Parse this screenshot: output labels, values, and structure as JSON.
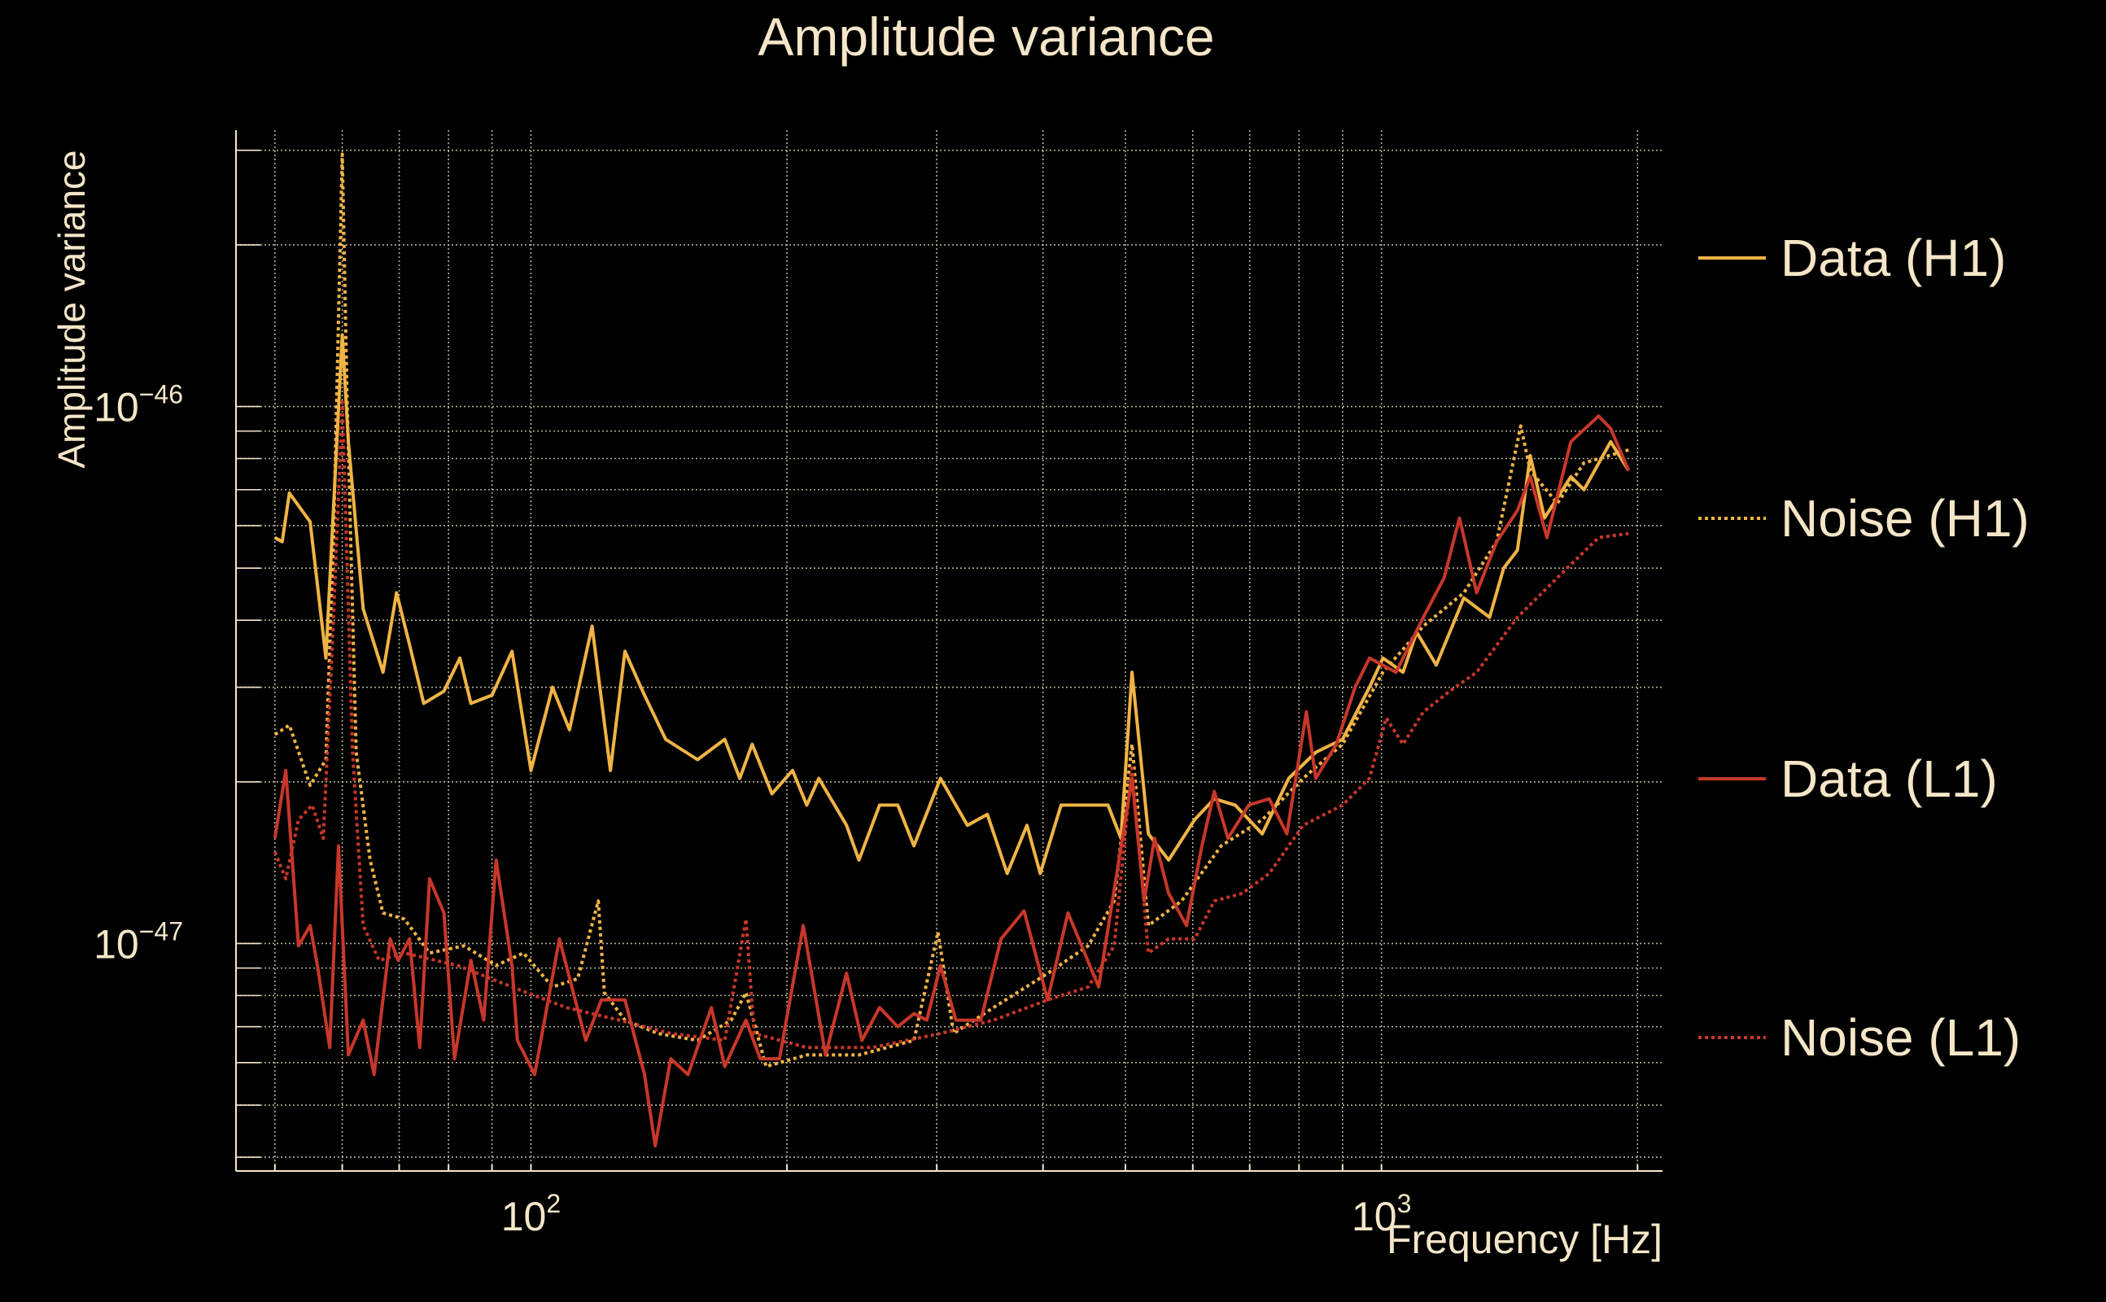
{
  "chart_data": {
    "type": "line",
    "title": "Amplitude variance",
    "xlabel": "Frequency [Hz]",
    "ylabel": "Amplitude variance",
    "xscale": "log",
    "yscale": "log",
    "xlim": [
      45,
      2140
    ],
    "ylim": [
      3.77e-48,
      3.27e-46
    ],
    "grid": true,
    "legend_position": "right",
    "x_ticks": [
      {
        "value": 100,
        "base": "10",
        "exp": "2"
      },
      {
        "value": 1000,
        "base": "10",
        "exp": "3"
      }
    ],
    "y_ticks": [
      {
        "value": 1e-46,
        "base": "10",
        "exp": "−46"
      },
      {
        "value": 1e-47,
        "base": "10",
        "exp": "−47"
      }
    ],
    "x_grid": [
      50,
      60,
      70,
      80,
      90,
      100,
      200,
      300,
      400,
      500,
      600,
      700,
      800,
      900,
      1000,
      2000
    ],
    "y_grid": [
      4e-48,
      5e-48,
      6e-48,
      7e-48,
      8e-48,
      9e-48,
      1e-47,
      2e-47,
      3e-47,
      4e-47,
      5e-47,
      6e-47,
      7e-47,
      8e-47,
      9e-47,
      1e-46,
      2e-46,
      3e-46
    ],
    "series": [
      {
        "name": "Data (H1)",
        "color": "#f0b445",
        "dash": "solid",
        "x": [
          50,
          51,
          52,
          55,
          57.4,
          60,
          61,
          63.5,
          67,
          69.5,
          72,
          74.8,
          79,
          82.5,
          85,
          90,
          95,
          100,
          106,
          111,
          118,
          124,
          129,
          136,
          144,
          157,
          169,
          176,
          182,
          192,
          203,
          211,
          218,
          235,
          243,
          257,
          270,
          282,
          303,
          326,
          344,
          363,
          383,
          397,
          420,
          452,
          477,
          494,
          509,
          532,
          562,
          603,
          636,
          673,
          724,
          778,
          837,
          900,
          968,
          1004,
          1060,
          1100,
          1160,
          1250,
          1340,
          1392,
          1445,
          1496,
          1555,
          1670,
          1730,
          1860,
          1952
        ],
        "y": [
          5.7e-47,
          5.6e-47,
          6.9e-47,
          6.1e-47,
          3.4e-47,
          1.36e-46,
          8.6e-47,
          4.2e-47,
          3.2e-47,
          4.5e-47,
          3.6e-47,
          2.8e-47,
          2.95e-47,
          3.4e-47,
          2.8e-47,
          2.9e-47,
          3.5e-47,
          2.1e-47,
          3e-47,
          2.5e-47,
          3.9e-47,
          2.1e-47,
          3.5e-47,
          2.9e-47,
          2.4e-47,
          2.2e-47,
          2.4e-47,
          2.03e-47,
          2.35e-47,
          1.9e-47,
          2.1e-47,
          1.81e-47,
          2.03e-47,
          1.66e-47,
          1.43e-47,
          1.81e-47,
          1.81e-47,
          1.52e-47,
          2.03e-47,
          1.66e-47,
          1.74e-47,
          1.35e-47,
          1.66e-47,
          1.35e-47,
          1.81e-47,
          1.81e-47,
          1.81e-47,
          1.57e-47,
          3.2e-47,
          1.6e-47,
          1.43e-47,
          1.7e-47,
          1.86e-47,
          1.81e-47,
          1.6e-47,
          2.03e-47,
          2.27e-47,
          2.4e-47,
          3e-47,
          3.4e-47,
          3.2e-47,
          3.8e-47,
          3.3e-47,
          4.4e-47,
          4.05e-47,
          5e-47,
          5.4e-47,
          8.1e-47,
          6.2e-47,
          7.4e-47,
          7e-47,
          8.6e-47,
          7.6e-47
        ]
      },
      {
        "name": "Noise (H1)",
        "color": "#f0b445",
        "dash": "dotted",
        "x": [
          50,
          52,
          55,
          57.4,
          58.6,
          60,
          60.8,
          62.3,
          64.7,
          67,
          71,
          76,
          83.4,
          91,
          98,
          106,
          113.5,
          120,
          122,
          129,
          141,
          157,
          172,
          179,
          189,
          211,
          243,
          282,
          301,
          314,
          350,
          405,
          452,
          485,
          509,
          532,
          582,
          648,
          724,
          809,
          900,
          1004,
          1120,
          1250,
          1366,
          1458,
          1496,
          1610,
          1730,
          1952
        ],
        "y": [
          2.45e-47,
          2.55e-47,
          1.97e-47,
          2.2e-47,
          5.7e-47,
          2.95e-46,
          1.02e-46,
          2.27e-47,
          1.43e-47,
          1.14e-47,
          1.11e-47,
          9.6e-48,
          9.9e-48,
          9.1e-48,
          9.6e-48,
          8.3e-48,
          8.6e-48,
          1.2e-47,
          8.1e-48,
          7.2e-48,
          6.8e-48,
          6.6e-48,
          7.2e-48,
          8.1e-48,
          5.9e-48,
          6.2e-48,
          6.2e-48,
          6.6e-48,
          1.05e-47,
          6.8e-48,
          7.6e-48,
          8.8e-48,
          9.9e-48,
          1.2e-47,
          2.35e-47,
          1.08e-47,
          1.2e-47,
          1.52e-47,
          1.7e-47,
          2.03e-47,
          2.35e-47,
          3.2e-47,
          3.9e-47,
          4.5e-47,
          5.6e-47,
          9.2e-47,
          7.6e-47,
          6.6e-47,
          7.85e-47,
          8.3e-47
        ]
      },
      {
        "name": "Data (L1)",
        "color": "#c7372a",
        "dash": "solid",
        "x": [
          50,
          51.5,
          53.3,
          55,
          56.1,
          58,
          59.4,
          61,
          63.5,
          65.4,
          68.3,
          69.8,
          72,
          74,
          76,
          79,
          81.3,
          85,
          88,
          91,
          95,
          96.4,
          101,
          108,
          116,
          121,
          129,
          136,
          140,
          146,
          153,
          163,
          169,
          179,
          186,
          196,
          209,
          222,
          235,
          245,
          257,
          270,
          282,
          292,
          303,
          316,
          338,
          357,
          380,
          405,
          428,
          465,
          509,
          526,
          541,
          562,
          590,
          615,
          636,
          660,
          698,
          738,
          774,
          816,
          837,
          885,
          931,
          968,
          1040,
          1120,
          1185,
          1235,
          1294,
          1366,
          1445,
          1496,
          1565,
          1670,
          1800,
          1860,
          1952
        ],
        "y": [
          1.57e-47,
          2.1e-47,
          9.9e-48,
          1.08e-47,
          9.1e-48,
          6.4e-48,
          1.52e-47,
          6.2e-48,
          7.2e-48,
          5.7e-48,
          1.02e-47,
          9.3e-48,
          1.02e-47,
          6.4e-48,
          1.32e-47,
          1.14e-47,
          6.1e-48,
          9.3e-48,
          7.2e-48,
          1.43e-47,
          9.1e-48,
          6.6e-48,
          5.7e-48,
          1.02e-47,
          6.6e-48,
          7.85e-48,
          7.85e-48,
          5.7e-48,
          4.2e-48,
          6.1e-48,
          5.7e-48,
          7.6e-48,
          5.9e-48,
          7.2e-48,
          6.1e-48,
          6.1e-48,
          1.08e-47,
          6.2e-48,
          8.8e-48,
          6.6e-48,
          7.6e-48,
          7e-48,
          7.4e-48,
          7.2e-48,
          9.1e-48,
          7.2e-48,
          7.2e-48,
          1.02e-47,
          1.15e-47,
          7.85e-48,
          1.14e-47,
          8.3e-48,
          2.03e-47,
          1.2e-47,
          1.57e-47,
          1.24e-47,
          1.08e-47,
          1.52e-47,
          1.92e-47,
          1.57e-47,
          1.81e-47,
          1.86e-47,
          1.6e-47,
          2.7e-47,
          2.03e-47,
          2.35e-47,
          3e-47,
          3.4e-47,
          3.2e-47,
          4.05e-47,
          4.8e-47,
          6.2e-47,
          4.5e-47,
          5.6e-47,
          6.4e-47,
          7.4e-47,
          5.7e-47,
          8.6e-47,
          9.6e-47,
          9.1e-47,
          7.6e-47
        ]
      },
      {
        "name": "Noise (L1)",
        "color": "#c7372a",
        "dash": "dotted",
        "x": [
          50,
          51.5,
          53.3,
          55.3,
          57,
          58.6,
          60,
          61.7,
          63.5,
          66.3,
          71,
          82,
          95,
          110,
          127,
          146,
          169,
          179,
          183,
          211,
          252,
          303,
          350,
          405,
          452,
          485,
          509,
          532,
          562,
          603,
          636,
          686,
          738,
          809,
          900,
          968,
          1013,
          1060,
          1120,
          1203,
          1294,
          1445,
          1610,
          1800,
          1952
        ],
        "y": [
          1.48e-47,
          1.32e-47,
          1.7e-47,
          1.81e-47,
          1.57e-47,
          4.05e-47,
          1.02e-46,
          2.27e-47,
          1.08e-47,
          9.3e-48,
          9.6e-48,
          9.1e-48,
          8.3e-48,
          7.6e-48,
          7.2e-48,
          6.8e-48,
          6.6e-48,
          1.11e-47,
          6.8e-48,
          6.4e-48,
          6.4e-48,
          6.8e-48,
          7.2e-48,
          7.85e-48,
          8.3e-48,
          9.9e-48,
          2.15e-47,
          9.6e-48,
          1.02e-47,
          1.02e-47,
          1.2e-47,
          1.24e-47,
          1.35e-47,
          1.66e-47,
          1.81e-47,
          2.03e-47,
          2.63e-47,
          2.35e-47,
          2.7e-47,
          2.95e-47,
          3.2e-47,
          4.05e-47,
          4.8e-47,
          5.7e-47,
          5.8e-47
        ]
      }
    ]
  }
}
